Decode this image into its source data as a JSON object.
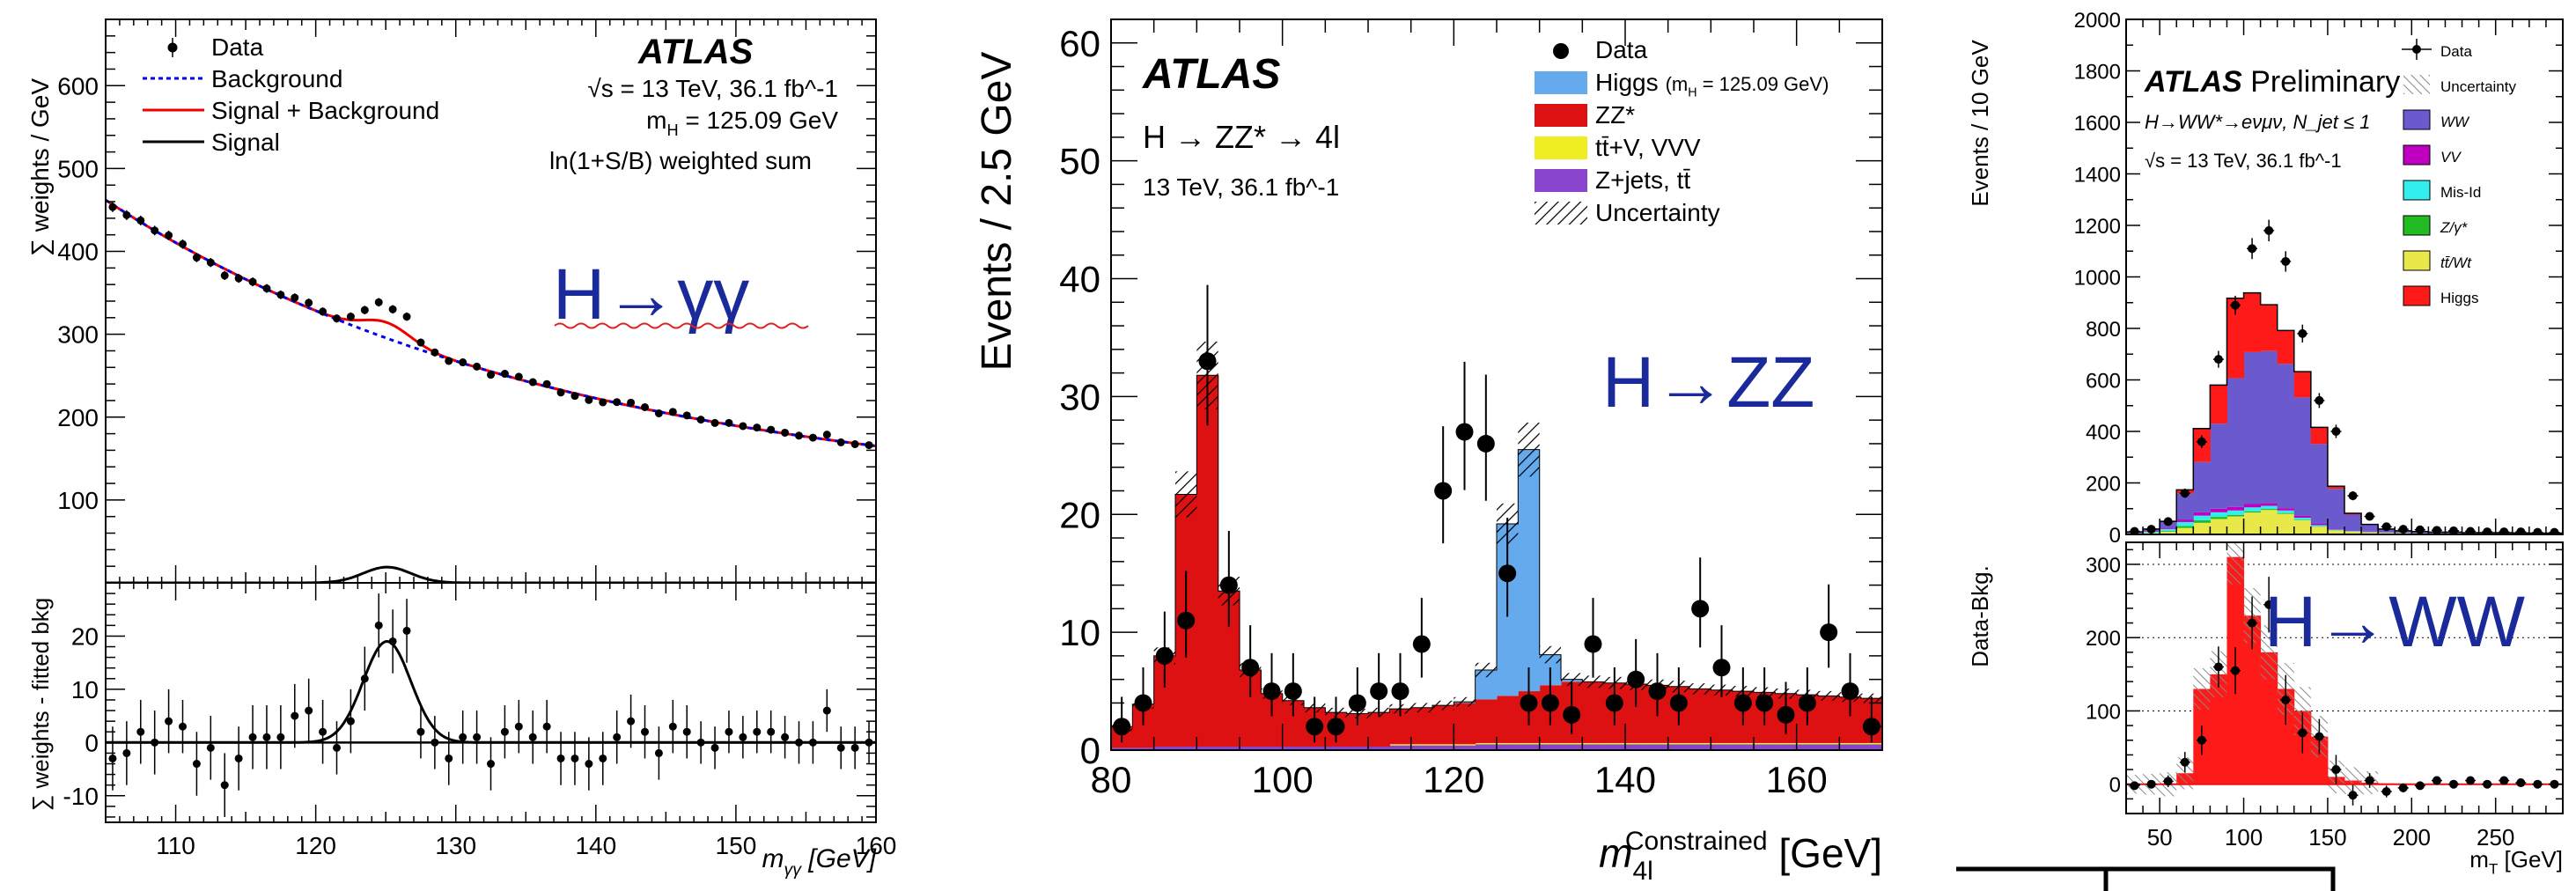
{
  "chart_data": [
    {
      "type": "scatter",
      "experiment": "ATLAS",
      "info_lines": [
        "√s = 13 TeV, 36.1 fb⁻¹",
        "m_H = 125.09 GeV",
        "ln(1+S/B) weighted sum"
      ],
      "overlay_label": "H→γγ",
      "ylabel": "∑ weights / GeV",
      "ratio_ylabel": "∑ weights - fitted bkg",
      "xlabel": "m_γγ [GeV]",
      "xlim": [
        105,
        160
      ],
      "ylim": [
        0,
        680
      ],
      "ratio_ylim": [
        -15,
        30
      ],
      "xticks": [
        110,
        120,
        130,
        140,
        150,
        160
      ],
      "yticks": [
        100,
        200,
        300,
        400,
        500,
        600
      ],
      "ratio_yticks": [
        -10,
        0,
        10,
        20
      ],
      "legend": [
        {
          "label": "Data",
          "style": "marker",
          "color": "#000000"
        },
        {
          "label": "Background",
          "style": "dotted",
          "color": "#0000ee"
        },
        {
          "label": "Signal + Background",
          "style": "solid",
          "color": "#ee0000"
        },
        {
          "label": "Signal",
          "style": "solid",
          "color": "#000000"
        }
      ],
      "x": [
        105.5,
        106.5,
        107.5,
        108.5,
        109.5,
        110.5,
        111.5,
        112.5,
        113.5,
        114.5,
        115.5,
        116.5,
        117.5,
        118.5,
        119.5,
        120.5,
        121.5,
        122.5,
        123.5,
        124.5,
        125.5,
        126.5,
        127.5,
        128.5,
        129.5,
        130.5,
        131.5,
        132.5,
        133.5,
        134.5,
        135.5,
        136.5,
        137.5,
        138.5,
        139.5,
        140.5,
        141.5,
        142.5,
        143.5,
        144.5,
        145.5,
        146.5,
        147.5,
        148.5,
        149.5,
        150.5,
        151.5,
        152.5,
        153.5,
        154.5,
        155.5,
        156.5,
        157.5,
        158.5,
        159.5
      ],
      "residuals": [
        -3,
        -2,
        2,
        0,
        4,
        3,
        -4,
        -1,
        -8,
        -3,
        1,
        1,
        1,
        5,
        6,
        2,
        -1,
        4,
        12,
        22,
        19,
        21,
        2,
        0,
        -3,
        1,
        1,
        -4,
        2,
        3,
        1,
        3,
        -3,
        -3,
        -4,
        -3,
        1,
        4,
        2,
        -2,
        3,
        2,
        0,
        -1,
        2,
        1,
        2,
        2,
        1,
        0,
        0,
        6,
        -1,
        -1,
        0
      ],
      "residual_errors": [
        6,
        6,
        6,
        6,
        6,
        5,
        6,
        6,
        6,
        6,
        6,
        6,
        6,
        6,
        6,
        6,
        5,
        6,
        6,
        6,
        6,
        6,
        5,
        5,
        5,
        5,
        5,
        5,
        5,
        5,
        5,
        5,
        5,
        5,
        5,
        5,
        5,
        5,
        5,
        5,
        5,
        5,
        4,
        4,
        4,
        4,
        4,
        4,
        4,
        4,
        4,
        4,
        4,
        4,
        4
      ],
      "background_fit": "exp(-(m-105)/60) model, 462 at 105 GeV to 96 at 160 GeV",
      "signal": {
        "mass": 125.09,
        "width": 1.7,
        "peak_height": 19
      }
    },
    {
      "type": "bar",
      "experiment": "ATLAS",
      "info_lines": [
        "H → ZZ* → 4l",
        "13 TeV, 36.1 fb⁻¹"
      ],
      "overlay_label": "H→ZZ",
      "ylabel": "Events / 2.5 GeV",
      "xlabel": "m_4l^Constrained [GeV]",
      "xlim": [
        80,
        170
      ],
      "ylim": [
        0,
        62
      ],
      "xticks": [
        80,
        100,
        120,
        140,
        160
      ],
      "yticks": [
        0,
        10,
        20,
        30,
        40,
        50,
        60
      ],
      "bin_edges_start": 80,
      "bin_width": 2.5,
      "legend": [
        {
          "label": "Data",
          "style": "marker",
          "color": "#000000"
        },
        {
          "label": "Higgs",
          "sub": "(m_H = 125.09 GeV)",
          "style": "fill",
          "color": "#66aaee"
        },
        {
          "label": "ZZ*",
          "style": "fill",
          "color": "#dd1111"
        },
        {
          "label": "tt̄+V, VVV",
          "style": "fill",
          "color": "#eeee22"
        },
        {
          "label": "Z+jets, tt̄",
          "style": "fill",
          "color": "#8844cc"
        },
        {
          "label": "Uncertainty",
          "style": "hatch",
          "color": "#000000"
        }
      ],
      "series": [
        {
          "name": "Z+jets, tt̄",
          "values": [
            0.2,
            0.2,
            0.3,
            0.3,
            0.3,
            0.3,
            0.3,
            0.3,
            0.3,
            0.3,
            0.3,
            0.3,
            0.3,
            0.4,
            0.4,
            0.4,
            0.4,
            0.5,
            0.5,
            0.5,
            0.5,
            0.5,
            0.5,
            0.5,
            0.5,
            0.5,
            0.5,
            0.5,
            0.5,
            0.5,
            0.5,
            0.5,
            0.5,
            0.5,
            0.5,
            0.5
          ]
        },
        {
          "name": "tt̄+V, VVV",
          "values": [
            0,
            0,
            0,
            0,
            0,
            0,
            0,
            0,
            0,
            0,
            0,
            0,
            0,
            0.1,
            0.1,
            0.1,
            0.1,
            0.1,
            0.1,
            0.1,
            0.1,
            0.1,
            0.1,
            0.1,
            0.1,
            0.1,
            0.1,
            0.1,
            0.1,
            0.1,
            0.1,
            0.1,
            0.1,
            0.1,
            0.1,
            0.1
          ]
        },
        {
          "name": "ZZ*",
          "values": [
            1.8,
            3.7,
            7.7,
            21.4,
            31.5,
            13.2,
            6.5,
            4.5,
            3.9,
            3.3,
            2.9,
            2.8,
            2.9,
            3.0,
            3.1,
            3.3,
            3.5,
            3.7,
            4.0,
            4.4,
            4.9,
            5.2,
            5.2,
            5.1,
            5.0,
            4.9,
            4.8,
            4.6,
            4.5,
            4.4,
            4.3,
            4.2,
            4.1,
            4.0,
            3.9,
            3.8
          ]
        },
        {
          "name": "Higgs",
          "values": [
            0,
            0,
            0,
            0,
            0,
            0,
            0,
            0,
            0,
            0,
            0,
            0,
            0,
            0,
            0,
            0,
            0.1,
            2.5,
            14.6,
            20.5,
            2.6,
            0.2,
            0,
            0,
            0,
            0,
            0,
            0,
            0,
            0,
            0,
            0,
            0,
            0,
            0,
            0
          ]
        }
      ],
      "data": {
        "x": [
          81.25,
          83.75,
          86.25,
          88.75,
          91.25,
          93.75,
          96.25,
          98.75,
          101.25,
          103.75,
          106.25,
          108.75,
          111.25,
          113.75,
          116.25,
          118.75,
          121.25,
          123.75,
          126.25,
          128.75,
          131.25,
          133.75,
          136.25,
          138.75,
          141.25,
          143.75,
          146.25,
          148.75,
          151.25,
          153.75,
          156.25,
          158.75,
          161.25,
          163.75,
          166.25,
          168.75
        ],
        "y": [
          2,
          4,
          8,
          11,
          33,
          14,
          7,
          5,
          5,
          2,
          2,
          4,
          5,
          5,
          9,
          22,
          27,
          26,
          15,
          4,
          4,
          3,
          9,
          4,
          6,
          5,
          4,
          12,
          7,
          4,
          4,
          3,
          4,
          10,
          5,
          2
        ]
      }
    },
    {
      "type": "bar",
      "experiment": "ATLAS",
      "preliminary": "Preliminary",
      "info_lines": [
        "H→WW*→eνμν, N_jet ≤ 1",
        "√s = 13 TeV, 36.1 fb⁻¹"
      ],
      "overlay_label": "H→WW",
      "ylabel": "Events / 10 GeV",
      "ratio_ylabel": "Data-Bkg.",
      "xlabel": "m_T [GeV]",
      "xlim": [
        30,
        290
      ],
      "ylim": [
        0,
        2000
      ],
      "ratio_ylim": [
        -40,
        330
      ],
      "xticks": [
        50,
        100,
        150,
        200,
        250
      ],
      "yticks": [
        0,
        200,
        400,
        600,
        800,
        1000,
        1200,
        1400,
        1600,
        1800,
        2000
      ],
      "ratio_yticks": [
        0,
        100,
        200,
        300
      ],
      "bin_edges_start": 30,
      "bin_width": 10,
      "legend": [
        {
          "label": "Data",
          "style": "marker",
          "color": "#000000"
        },
        {
          "label": "Uncertainty",
          "style": "hatch",
          "color": "#999999"
        },
        {
          "label": "WW",
          "style": "fill",
          "color": "#6a5acd"
        },
        {
          "label": "VV",
          "style": "fill",
          "color": "#c000c0"
        },
        {
          "label": "Mis-Id",
          "style": "fill",
          "color": "#33eeee"
        },
        {
          "label": "Z/γ*",
          "style": "fill",
          "color": "#22bb22"
        },
        {
          "label": "tt̄/Wt",
          "style": "fill",
          "color": "#e8e84a"
        },
        {
          "label": "Higgs",
          "style": "fill",
          "color": "#ff1a1a"
        }
      ],
      "series": [
        {
          "name": "tt̄/Wt",
          "values": [
            3,
            5,
            10,
            25,
            45,
            60,
            70,
            85,
            95,
            80,
            55,
            30,
            15,
            10,
            8,
            6,
            5,
            4,
            3,
            3,
            2,
            2,
            2,
            1,
            1,
            1
          ]
        },
        {
          "name": "Z/γ*",
          "values": [
            0,
            1,
            3,
            8,
            10,
            8,
            6,
            5,
            4,
            3,
            2,
            1,
            1,
            1,
            0,
            0,
            0,
            0,
            0,
            0,
            0,
            0,
            0,
            0,
            0,
            0
          ]
        },
        {
          "name": "Mis-Id",
          "values": [
            2,
            4,
            8,
            15,
            18,
            18,
            17,
            15,
            12,
            10,
            8,
            5,
            3,
            2,
            1,
            1,
            1,
            0,
            0,
            0,
            0,
            0,
            0,
            0,
            0,
            0
          ]
        },
        {
          "name": "VV",
          "values": [
            2,
            3,
            5,
            10,
            13,
            14,
            14,
            13,
            11,
            9,
            7,
            5,
            3,
            2,
            2,
            1,
            1,
            1,
            0,
            0,
            0,
            0,
            0,
            0,
            0,
            0
          ]
        },
        {
          "name": "WW",
          "values": [
            3,
            8,
            25,
            100,
            195,
            330,
            500,
            590,
            590,
            560,
            460,
            310,
            155,
            62,
            26,
            12,
            7,
            6,
            6,
            6,
            5,
            5,
            5,
            5,
            4,
            4
          ]
        },
        {
          "name": "Higgs",
          "values": [
            0,
            0,
            0,
            15,
            130,
            150,
            310,
            230,
            180,
            130,
            100,
            65,
            10,
            5,
            2,
            1,
            0,
            0,
            0,
            0,
            0,
            0,
            0,
            0,
            0,
            0
          ]
        }
      ],
      "data": {
        "x": [
          35,
          45,
          55,
          65,
          75,
          85,
          95,
          105,
          115,
          125,
          135,
          145,
          155,
          165,
          175,
          185,
          195,
          205,
          215,
          225,
          235,
          245,
          255,
          265,
          275,
          285
        ],
        "y": [
          12,
          20,
          50,
          160,
          360,
          680,
          890,
          1110,
          1180,
          1060,
          780,
          520,
          400,
          150,
          70,
          30,
          20,
          18,
          16,
          14,
          12,
          10,
          10,
          10,
          8,
          8
        ]
      },
      "residuals": {
        "x": [
          35,
          45,
          55,
          65,
          75,
          85,
          95,
          105,
          115,
          125,
          135,
          145,
          155,
          165,
          175,
          185,
          195,
          205,
          215,
          225,
          235,
          245,
          255,
          265,
          275,
          285
        ],
        "y": [
          -2,
          0,
          4,
          30,
          60,
          160,
          155,
          220,
          245,
          115,
          70,
          65,
          20,
          -15,
          5,
          -10,
          -5,
          -2,
          5,
          0,
          5,
          0,
          5,
          2,
          0,
          0
        ],
        "errors": [
          4,
          5,
          8,
          14,
          20,
          28,
          32,
          36,
          38,
          34,
          28,
          24,
          20,
          14,
          10,
          8,
          6,
          5,
          4,
          4,
          4,
          3,
          3,
          3,
          3,
          3
        ]
      }
    }
  ]
}
